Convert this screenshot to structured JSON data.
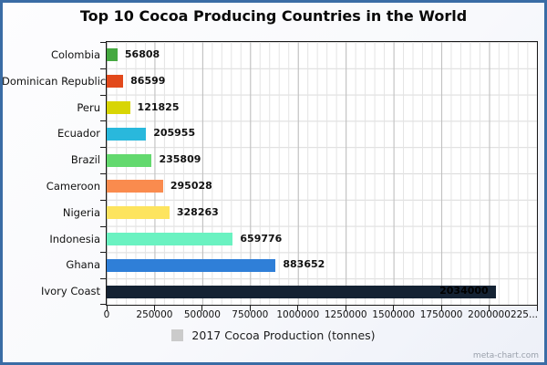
{
  "title": "Top 10 Cocoa Producing Countries in the World",
  "watermark": "meta-chart.com",
  "legend": {
    "label": "2017 Cocoa Production (tonnes)",
    "swatch_color": "#cbcbcb",
    "position": "bottom"
  },
  "colors": {
    "frame_border": "#3a6ca5",
    "background_start": "#fdfdfe",
    "background_end": "#edf0f8",
    "plot_background": "#ffffff",
    "grid_major": "#bdbdbd",
    "grid_minor": "#e4e4e4",
    "grid_row": "#dadada",
    "axis": "#1a1a1a",
    "text": "#111111",
    "watermark_text": "#99a0ab"
  },
  "chart_data": {
    "type": "bar",
    "orientation": "horizontal",
    "title": "Top 10 Cocoa Producing Countries in the World",
    "xlabel": "",
    "ylabel": "",
    "grid": "on",
    "legend_position": "bottom",
    "legend_entries": [
      "2017 Cocoa Production (tonnes)"
    ],
    "categories": [
      "Colombia",
      "Dominican Republic",
      "Peru",
      "Ecuador",
      "Brazil",
      "Cameroon",
      "Nigeria",
      "Indonesia",
      "Ghana",
      "Ivory Coast"
    ],
    "values": [
      56808,
      86599,
      121825,
      205955,
      235809,
      295028,
      328263,
      659776,
      883652,
      2034000
    ],
    "value_labels": [
      "56808",
      "86599",
      "121825",
      "205955",
      "235809",
      "295028",
      "328263",
      "659776",
      "883652",
      "2034000"
    ],
    "bar_colors": [
      "#45a940",
      "#e2491b",
      "#d8d504",
      "#29b8dc",
      "#63d96e",
      "#fa8b4e",
      "#fde45e",
      "#6af2c1",
      "#2f7fd8",
      "#142233"
    ],
    "value_label_inside": [
      false,
      false,
      false,
      false,
      false,
      false,
      false,
      false,
      false,
      true
    ],
    "xlim": [
      0,
      2250000
    ],
    "x_ticks": [
      {
        "value": 0,
        "label": "0"
      },
      {
        "value": 250000,
        "label": "250000"
      },
      {
        "value": 500000,
        "label": "500000"
      },
      {
        "value": 750000,
        "label": "750000"
      },
      {
        "value": 1000000,
        "label": "1000000"
      },
      {
        "value": 1250000,
        "label": "1250000"
      },
      {
        "value": 1500000,
        "label": "1500000"
      },
      {
        "value": 1750000,
        "label": "1750000"
      },
      {
        "value": 2000000,
        "label": "2000000"
      },
      {
        "value": 2250000,
        "label": "225..."
      }
    ],
    "minor_grid_step_x": 50000
  }
}
